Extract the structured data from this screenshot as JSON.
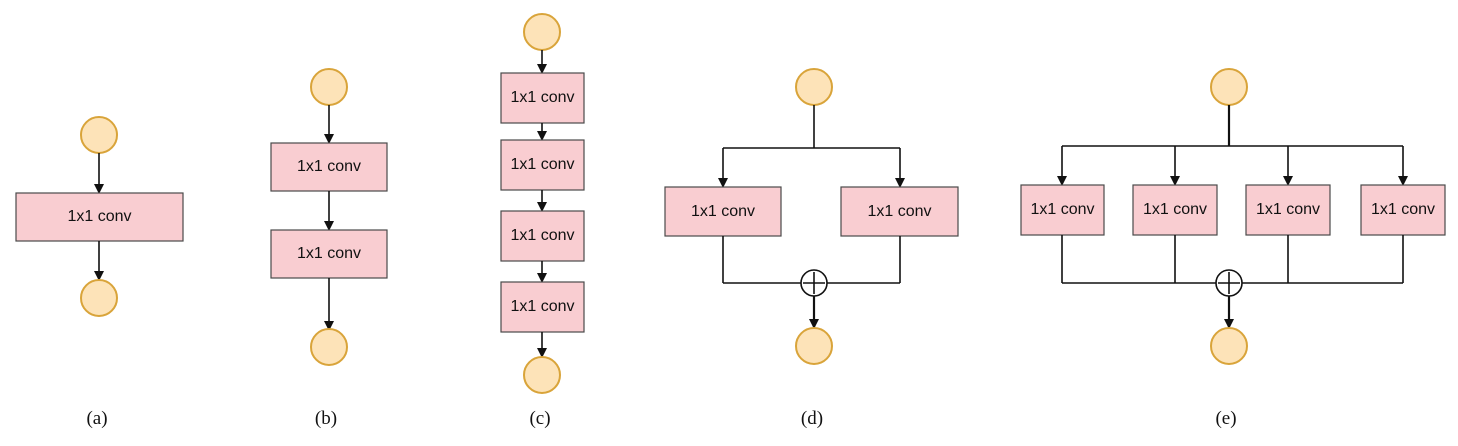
{
  "diagram": {
    "node_fill": "#fde3b8",
    "node_stroke": "#d9a43a",
    "block_fill": "#f9cdd1",
    "block_label": "1x1 conv",
    "sum_symbol": "plus-circle-icon",
    "panels": [
      {
        "caption": "(a)",
        "structure": "single",
        "conv_blocks": 1
      },
      {
        "caption": "(b)",
        "structure": "sequential",
        "conv_blocks": 2
      },
      {
        "caption": "(c)",
        "structure": "sequential",
        "conv_blocks": 4
      },
      {
        "caption": "(d)",
        "structure": "parallel-sum",
        "conv_blocks": 2
      },
      {
        "caption": "(e)",
        "structure": "parallel-sum",
        "conv_blocks": 4
      }
    ]
  }
}
